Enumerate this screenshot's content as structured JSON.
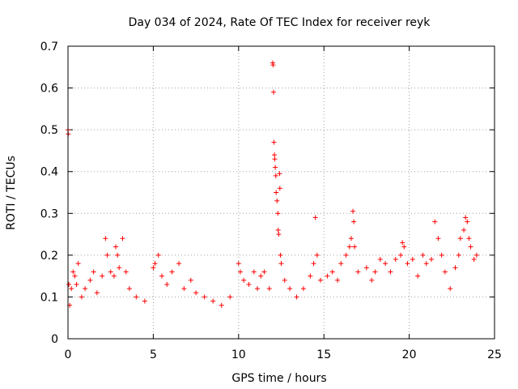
{
  "chart_data": {
    "type": "scatter",
    "title": "Day 034 of 2024, Rate Of TEC Index for receiver reyk",
    "xlabel": "GPS time / hours",
    "ylabel": "ROTI / TECUs",
    "xlim": [
      0,
      25
    ],
    "ylim": [
      0,
      0.7
    ],
    "x_ticks": [
      "0",
      "5",
      "10",
      "15",
      "20",
      "25"
    ],
    "y_ticks": [
      "0",
      "0.1",
      "0.2",
      "0.3",
      "0.4",
      "0.5",
      "0.6",
      "0.7"
    ],
    "grid": true,
    "marker": "plus",
    "color": "#ff0000",
    "series": [
      {
        "name": "ROTI",
        "points": [
          [
            0.0,
            0.5
          ],
          [
            0.02,
            0.49
          ],
          [
            0.05,
            0.13
          ],
          [
            0.1,
            0.08
          ],
          [
            0.2,
            0.12
          ],
          [
            0.3,
            0.16
          ],
          [
            0.4,
            0.15
          ],
          [
            0.5,
            0.13
          ],
          [
            0.6,
            0.18
          ],
          [
            0.8,
            0.1
          ],
          [
            1.0,
            0.12
          ],
          [
            1.3,
            0.14
          ],
          [
            1.5,
            0.16
          ],
          [
            1.7,
            0.11
          ],
          [
            2.0,
            0.15
          ],
          [
            2.2,
            0.24
          ],
          [
            2.3,
            0.2
          ],
          [
            2.5,
            0.16
          ],
          [
            2.7,
            0.15
          ],
          [
            2.8,
            0.22
          ],
          [
            2.9,
            0.2
          ],
          [
            3.0,
            0.17
          ],
          [
            3.2,
            0.24
          ],
          [
            3.4,
            0.16
          ],
          [
            3.6,
            0.12
          ],
          [
            4.0,
            0.1
          ],
          [
            4.5,
            0.09
          ],
          [
            5.0,
            0.17
          ],
          [
            5.1,
            0.18
          ],
          [
            5.3,
            0.2
          ],
          [
            5.5,
            0.15
          ],
          [
            5.8,
            0.13
          ],
          [
            6.1,
            0.16
          ],
          [
            6.5,
            0.18
          ],
          [
            6.8,
            0.12
          ],
          [
            7.2,
            0.14
          ],
          [
            7.5,
            0.11
          ],
          [
            8.0,
            0.1
          ],
          [
            8.5,
            0.09
          ],
          [
            9.0,
            0.08
          ],
          [
            9.5,
            0.1
          ],
          [
            10.0,
            0.18
          ],
          [
            10.1,
            0.16
          ],
          [
            10.3,
            0.14
          ],
          [
            10.6,
            0.13
          ],
          [
            10.9,
            0.16
          ],
          [
            11.1,
            0.12
          ],
          [
            11.3,
            0.15
          ],
          [
            11.5,
            0.16
          ],
          [
            11.8,
            0.12
          ],
          [
            12.0,
            0.66
          ],
          [
            12.02,
            0.655
          ],
          [
            12.05,
            0.59
          ],
          [
            12.07,
            0.47
          ],
          [
            12.1,
            0.44
          ],
          [
            12.12,
            0.43
          ],
          [
            12.15,
            0.41
          ],
          [
            12.18,
            0.39
          ],
          [
            12.2,
            0.35
          ],
          [
            12.25,
            0.33
          ],
          [
            12.3,
            0.3
          ],
          [
            12.32,
            0.26
          ],
          [
            12.35,
            0.25
          ],
          [
            12.4,
            0.395
          ],
          [
            12.42,
            0.36
          ],
          [
            12.45,
            0.2
          ],
          [
            12.5,
            0.18
          ],
          [
            12.7,
            0.14
          ],
          [
            13.0,
            0.12
          ],
          [
            13.4,
            0.1
          ],
          [
            13.8,
            0.12
          ],
          [
            14.2,
            0.15
          ],
          [
            14.4,
            0.18
          ],
          [
            14.5,
            0.29
          ],
          [
            14.6,
            0.2
          ],
          [
            14.8,
            0.14
          ],
          [
            15.2,
            0.15
          ],
          [
            15.5,
            0.16
          ],
          [
            15.8,
            0.14
          ],
          [
            16.0,
            0.18
          ],
          [
            16.3,
            0.2
          ],
          [
            16.5,
            0.22
          ],
          [
            16.6,
            0.24
          ],
          [
            16.7,
            0.305
          ],
          [
            16.75,
            0.28
          ],
          [
            16.8,
            0.22
          ],
          [
            17.0,
            0.16
          ],
          [
            17.5,
            0.17
          ],
          [
            17.8,
            0.14
          ],
          [
            18.0,
            0.16
          ],
          [
            18.3,
            0.19
          ],
          [
            18.6,
            0.18
          ],
          [
            18.9,
            0.16
          ],
          [
            19.2,
            0.19
          ],
          [
            19.5,
            0.2
          ],
          [
            19.6,
            0.23
          ],
          [
            19.7,
            0.22
          ],
          [
            19.9,
            0.18
          ],
          [
            20.2,
            0.19
          ],
          [
            20.5,
            0.15
          ],
          [
            20.8,
            0.2
          ],
          [
            21.0,
            0.18
          ],
          [
            21.3,
            0.19
          ],
          [
            21.5,
            0.28
          ],
          [
            21.7,
            0.24
          ],
          [
            21.9,
            0.2
          ],
          [
            22.1,
            0.16
          ],
          [
            22.4,
            0.12
          ],
          [
            22.7,
            0.17
          ],
          [
            22.9,
            0.2
          ],
          [
            23.0,
            0.24
          ],
          [
            23.2,
            0.26
          ],
          [
            23.3,
            0.29
          ],
          [
            23.4,
            0.28
          ],
          [
            23.5,
            0.24
          ],
          [
            23.6,
            0.22
          ],
          [
            23.8,
            0.19
          ],
          [
            23.95,
            0.2
          ]
        ]
      }
    ]
  }
}
